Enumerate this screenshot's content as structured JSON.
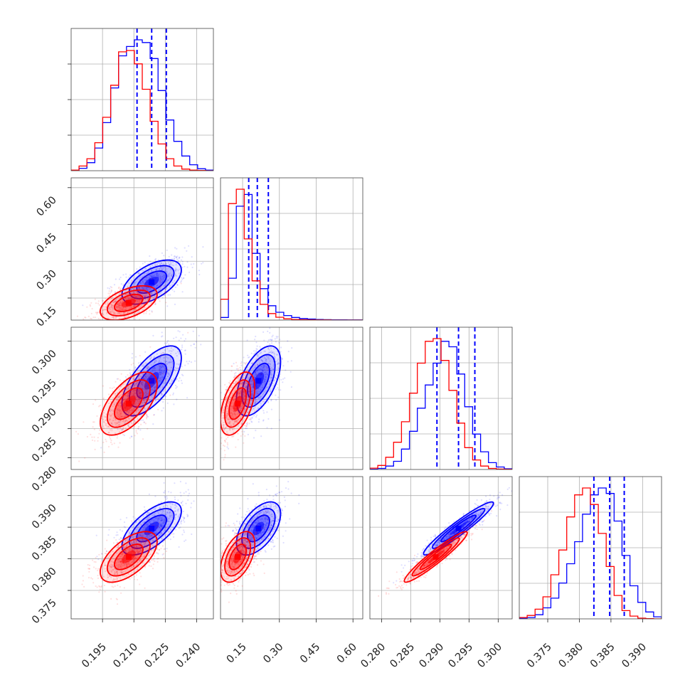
{
  "colors": {
    "series_a": "#0000ff",
    "series_b": "#ff0000",
    "grid": "#b0b0b0",
    "frame": "#444444"
  },
  "chart_data": {
    "type": "corner",
    "grid": true,
    "params": [
      {
        "range": [
          0.18,
          0.248
        ],
        "ticks": [
          "0.195",
          "0.210",
          "0.225",
          "0.240"
        ]
      },
      {
        "range": [
          0.06,
          0.64
        ],
        "ticks": [
          "0.15",
          "0.30",
          "0.45",
          "0.60"
        ]
      },
      {
        "range": [
          0.278,
          0.3024
        ],
        "ticks": [
          "0.280",
          "0.285",
          "0.290",
          "0.295",
          "0.300"
        ]
      },
      {
        "range": [
          0.3705,
          0.393
        ],
        "ticks": [
          "0.375",
          "0.380",
          "0.385",
          "0.390"
        ]
      }
    ],
    "series": [
      {
        "color": "#0000ff",
        "quantile_lines": [
          [
            0.2115,
            0.2185,
            0.2255
          ],
          [
            0.175,
            0.21,
            0.255
          ],
          [
            0.2895,
            0.2932,
            0.296
          ],
          [
            0.3823,
            0.3848,
            0.3871
          ]
        ],
        "means": [
          0.2185,
          0.215,
          0.2932,
          0.3848
        ],
        "sigmas": [
          0.0071,
          0.045,
          0.003,
          0.0021
        ],
        "hists": [
          [
            0.05,
            0.18,
            0.6,
            1.7,
            3.6,
            6.2,
            8.6,
            9.3,
            9.8,
            9.6,
            8.4,
            6.0,
            3.8,
            2.2,
            1.1,
            0.45,
            0.15,
            0.05
          ],
          [
            0.2,
            3.2,
            8.7,
            9.6,
            5.1,
            2.4,
            1.1,
            0.6,
            0.35,
            0.2,
            0.12,
            0.08,
            0.05,
            0.03,
            0.02,
            0.02,
            0.01,
            0.01
          ],
          [
            0.02,
            0.08,
            0.25,
            0.6,
            1.5,
            2.8,
            4.5,
            6.2,
            7.8,
            9.4,
            9.0,
            7.0,
            4.6,
            2.6,
            1.3,
            0.5,
            0.18,
            0.05
          ],
          [
            0.05,
            0.1,
            0.3,
            0.8,
            1.5,
            2.6,
            4.0,
            5.6,
            7.6,
            9.0,
            9.5,
            9.1,
            7.1,
            4.6,
            2.4,
            1.2,
            0.5,
            0.15
          ]
        ]
      },
      {
        "color": "#ff0000",
        "quantile_lines": [],
        "means": [
          0.2075,
          0.13,
          0.2893,
          0.3803
        ],
        "sigmas": [
          0.0068,
          0.035,
          0.0027,
          0.002
        ],
        "hists": [
          [
            0.05,
            0.35,
            0.9,
            2.1,
            4.0,
            6.4,
            8.9,
            9.0,
            8.0,
            6.1,
            3.7,
            2.0,
            0.9,
            0.35,
            0.12,
            0.05,
            0.02,
            0.0
          ],
          [
            1.6,
            8.9,
            10.0,
            6.2,
            3.0,
            1.2,
            0.5,
            0.22,
            0.1,
            0.05,
            0.03,
            0.02,
            0.01,
            0.01,
            0.0,
            0.0,
            0.0,
            0.0
          ],
          [
            0.1,
            0.3,
            0.9,
            2.0,
            3.5,
            5.6,
            7.8,
            9.4,
            9.6,
            8.0,
            5.8,
            3.4,
            1.6,
            0.7,
            0.25,
            0.08,
            0.03,
            0.01
          ],
          [
            0.1,
            0.25,
            0.7,
            1.6,
            3.2,
            5.0,
            7.4,
            9.0,
            9.5,
            8.3,
            6.2,
            3.8,
            1.7,
            0.6,
            0.2,
            0.05,
            0.02,
            0.0
          ]
        ]
      }
    ],
    "correlations": {
      "0-1": [
        0.55,
        0.5
      ],
      "0-2": [
        0.65,
        0.6
      ],
      "1-2": [
        0.55,
        0.5
      ],
      "0-3": [
        0.65,
        0.6
      ],
      "1-3": [
        0.55,
        0.5
      ],
      "2-3": [
        0.95,
        0.95
      ]
    }
  }
}
